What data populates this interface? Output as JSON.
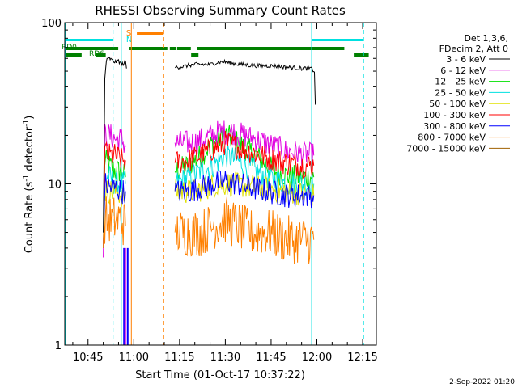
{
  "chart_data": {
    "type": "line",
    "title": "RHESSI Observing Summary Count Rates",
    "xlabel": "Start Time (01-Oct-17 10:37:22)",
    "ylabel": "Count Rate (s",
    "ylabel_sup": "-1",
    "ylabel_tail": "detector",
    "ylabel_end": ")",
    "y_scale": "log",
    "ylim": [
      1,
      100
    ],
    "y_ticks": [
      {
        "value": 1,
        "label": "1"
      },
      {
        "value": 10,
        "label": "10"
      },
      {
        "value": 100,
        "label": "100"
      }
    ],
    "xlim_minutes": [
      37.37,
      139.5
    ],
    "x_ticks": [
      {
        "minute": 45,
        "label": "10:45"
      },
      {
        "minute": 60,
        "label": "11:00"
      },
      {
        "minute": 75,
        "label": "11:15"
      },
      {
        "minute": 90,
        "label": "11:30"
      },
      {
        "minute": 105,
        "label": "11:45"
      },
      {
        "minute": 120,
        "label": "12:00"
      },
      {
        "minute": 135,
        "label": "12:15"
      }
    ],
    "legend": {
      "placement": "right",
      "header": [
        "Det 1,3,6,",
        "FDecim 2, Att 0"
      ],
      "entries": [
        {
          "label": "3 - 6 keV",
          "color": "#000000"
        },
        {
          "label": "6 - 12 keV",
          "color": "#e000e0"
        },
        {
          "label": "12 - 25 keV",
          "color": "#00e000"
        },
        {
          "label": "25 - 50 keV",
          "color": "#00e0e0"
        },
        {
          "label": "50 - 100 keV",
          "color": "#e0e000"
        },
        {
          "label": "100 - 300 keV",
          "color": "#ff0000"
        },
        {
          "label": "300 - 800 keV",
          "color": "#0000ff"
        },
        {
          "label": "800 - 7000 keV",
          "color": "#ff8000"
        },
        {
          "label": "7000 - 15000 keV",
          "color": "#a06000"
        }
      ]
    },
    "series": [
      {
        "label": "3 - 6 keV",
        "color": "#000000",
        "segments": [
          {
            "x": [
              50.0,
              50.5,
              51.0,
              52,
              53,
              54,
              55,
              56,
              57.3,
              57.6
            ],
            "y": [
              5,
              45,
              58,
              60,
              58,
              57,
              58,
              55,
              57,
              52
            ]
          },
          {
            "x": [
              73.5,
              75,
              80,
              85,
              88,
              90,
              92,
              95,
              100,
              105,
              110,
              115,
              118,
              119.2,
              119.5
            ],
            "y": [
              53,
              53,
              55,
              55,
              57,
              57,
              56,
              55,
              54,
              54,
              53,
              52,
              52,
              50,
              31
            ]
          }
        ]
      },
      {
        "label": "6 - 12 keV",
        "color": "#e000e0",
        "segments": [
          {
            "x": [
              50.0,
              50.5,
              52,
              54,
              56,
              57.3
            ],
            "y": [
              3.5,
              20,
              20,
              19,
              19,
              17
            ]
          },
          {
            "x": [
              73.5,
              80,
              88,
              92,
              100,
              110,
              119.0
            ],
            "y": [
              18,
              18,
              21,
              21,
              19,
              16,
              15
            ]
          }
        ]
      },
      {
        "label": "12 - 25 keV",
        "color": "#00e000",
        "segments": [
          {
            "x": [
              50.0,
              50.5,
              52,
              54,
              56,
              57.3
            ],
            "y": [
              4,
              14,
              13,
              12,
              12,
              11
            ]
          },
          {
            "x": [
              73.5,
              78,
              82,
              86,
              90,
              94,
              100,
              106,
              112,
              119.0
            ],
            "y": [
              12,
              13,
              15,
              18,
              20,
              18,
              15,
              12,
              11,
              11
            ]
          }
        ]
      },
      {
        "label": "25 - 50 keV",
        "color": "#00e0e0",
        "segments": [
          {
            "x": [
              50.0,
              50.5,
              52,
              54,
              56,
              57.3
            ],
            "y": [
              4,
              11,
              11,
              10,
              10,
              10
            ]
          },
          {
            "x": [
              73.5,
              78,
              82,
              86,
              90,
              94,
              100,
              106,
              112,
              119.0
            ],
            "y": [
              10,
              11,
              12,
              13,
              15,
              14,
              12,
              10.5,
              10,
              10
            ]
          }
        ]
      },
      {
        "label": "50 - 100 keV",
        "color": "#e0e000",
        "segments": [
          {
            "x": [
              50.0,
              50.5,
              52,
              54,
              56,
              57.3
            ],
            "y": [
              4,
              9,
              9,
              9,
              8.5,
              8.5
            ]
          },
          {
            "x": [
              73.5,
              80,
              88,
              92,
              100,
              110,
              119.0
            ],
            "y": [
              9,
              9,
              10,
              10,
              9.5,
              9,
              8.5
            ]
          }
        ]
      },
      {
        "label": "100 - 300 keV",
        "color": "#ff0000",
        "segments": [
          {
            "x": [
              50.0,
              50.5,
              52,
              54,
              56,
              57.3
            ],
            "y": [
              4,
              16,
              15,
              15,
              14,
              14
            ]
          },
          {
            "x": [
              73.5,
              78,
              82,
              86,
              90,
              94,
              98,
              104,
              110,
              116,
              119.0
            ],
            "y": [
              13.5,
              14,
              15,
              16.5,
              18,
              17,
              16,
              14.5,
              13.5,
              13,
              13
            ]
          }
        ]
      },
      {
        "label": "300 - 800 keV",
        "color": "#0000ff",
        "segments": [
          {
            "x": [
              50.0,
              50.5,
              52,
              54,
              56,
              57.3
            ],
            "y": [
              4,
              10,
              9.5,
              9.5,
              9,
              9
            ]
          },
          {
            "x": [
              73.5,
              78,
              82,
              86,
              90,
              94,
              98,
              104,
              110,
              116,
              119.0
            ],
            "y": [
              9,
              9,
              9.5,
              10,
              10.5,
              10,
              9.5,
              9,
              8.5,
              8.5,
              8.5
            ]
          }
        ]
      },
      {
        "label": "800 - 7000 keV",
        "color": "#ff8000",
        "segments": [
          {
            "x": [
              50.0,
              50.5,
              52,
              54,
              56,
              57.3
            ],
            "y": [
              4,
              6,
              6,
              6,
              6,
              5.5
            ]
          },
          {
            "x": [
              73.5,
              78,
              82,
              86,
              90,
              94,
              98,
              104,
              110,
              116,
              119.0
            ],
            "y": [
              5,
              5,
              5,
              5.5,
              6,
              5.5,
              5,
              5,
              4.5,
              4.5,
              4.5
            ]
          }
        ]
      }
    ],
    "state_bars": [
      {
        "label": "",
        "color": "#00e0e0",
        "y_top": 48,
        "thickness": 3,
        "intervals": [
          [
            37.37,
            53.2
          ],
          [
            118.3,
            135.3
          ]
        ]
      },
      {
        "label": "S",
        "color": "#ff8000",
        "y_top": 40,
        "thickness": 3,
        "intervals": [
          [
            61.0,
            69.8
          ]
        ]
      },
      {
        "label": "RD0",
        "color": "#008000",
        "y_top": 58,
        "thickness": 4,
        "intervals": [
          [
            37.37,
            54.9
          ],
          [
            58.6,
            71.0
          ],
          [
            71.8,
            73.8
          ],
          [
            74.2,
            78.7
          ],
          [
            80.7,
            129.0
          ]
        ]
      },
      {
        "label": "RD6",
        "color": "#008000",
        "y_top": 66,
        "thickness": 4,
        "intervals": [
          [
            37.37,
            42.9
          ],
          [
            47.5,
            50.8
          ],
          [
            78.8,
            81.2
          ],
          [
            132.1,
            137.0
          ]
        ]
      }
    ],
    "vlines": [
      {
        "minute": 37.6,
        "color": "#00e0e0",
        "dash": false
      },
      {
        "minute": 53.2,
        "color": "#00e0e0",
        "dash": true
      },
      {
        "minute": 55.9,
        "color": "#00e0e0",
        "dash": false
      },
      {
        "minute": 59.2,
        "color": "#ff8000",
        "dash": false
      },
      {
        "minute": 69.8,
        "color": "#ff8000",
        "dash": true
      },
      {
        "minute": 118.3,
        "color": "#00e0e0",
        "dash": false
      },
      {
        "minute": 135.3,
        "color": "#00e0e0",
        "dash": true
      }
    ],
    "drops": [
      {
        "minute": 56.8,
        "color": "#0000ff"
      },
      {
        "minute": 57.2,
        "color": "#e000e0"
      },
      {
        "minute": 58.0,
        "color": "#0000ff"
      }
    ],
    "state_labels": [
      {
        "text": "S",
        "color": "#ff8000",
        "minute": 58.3
      },
      {
        "text": "N",
        "color": "#00e0e0",
        "minute": 58.3
      }
    ],
    "footer": "2-Sep-2022 01:20"
  }
}
